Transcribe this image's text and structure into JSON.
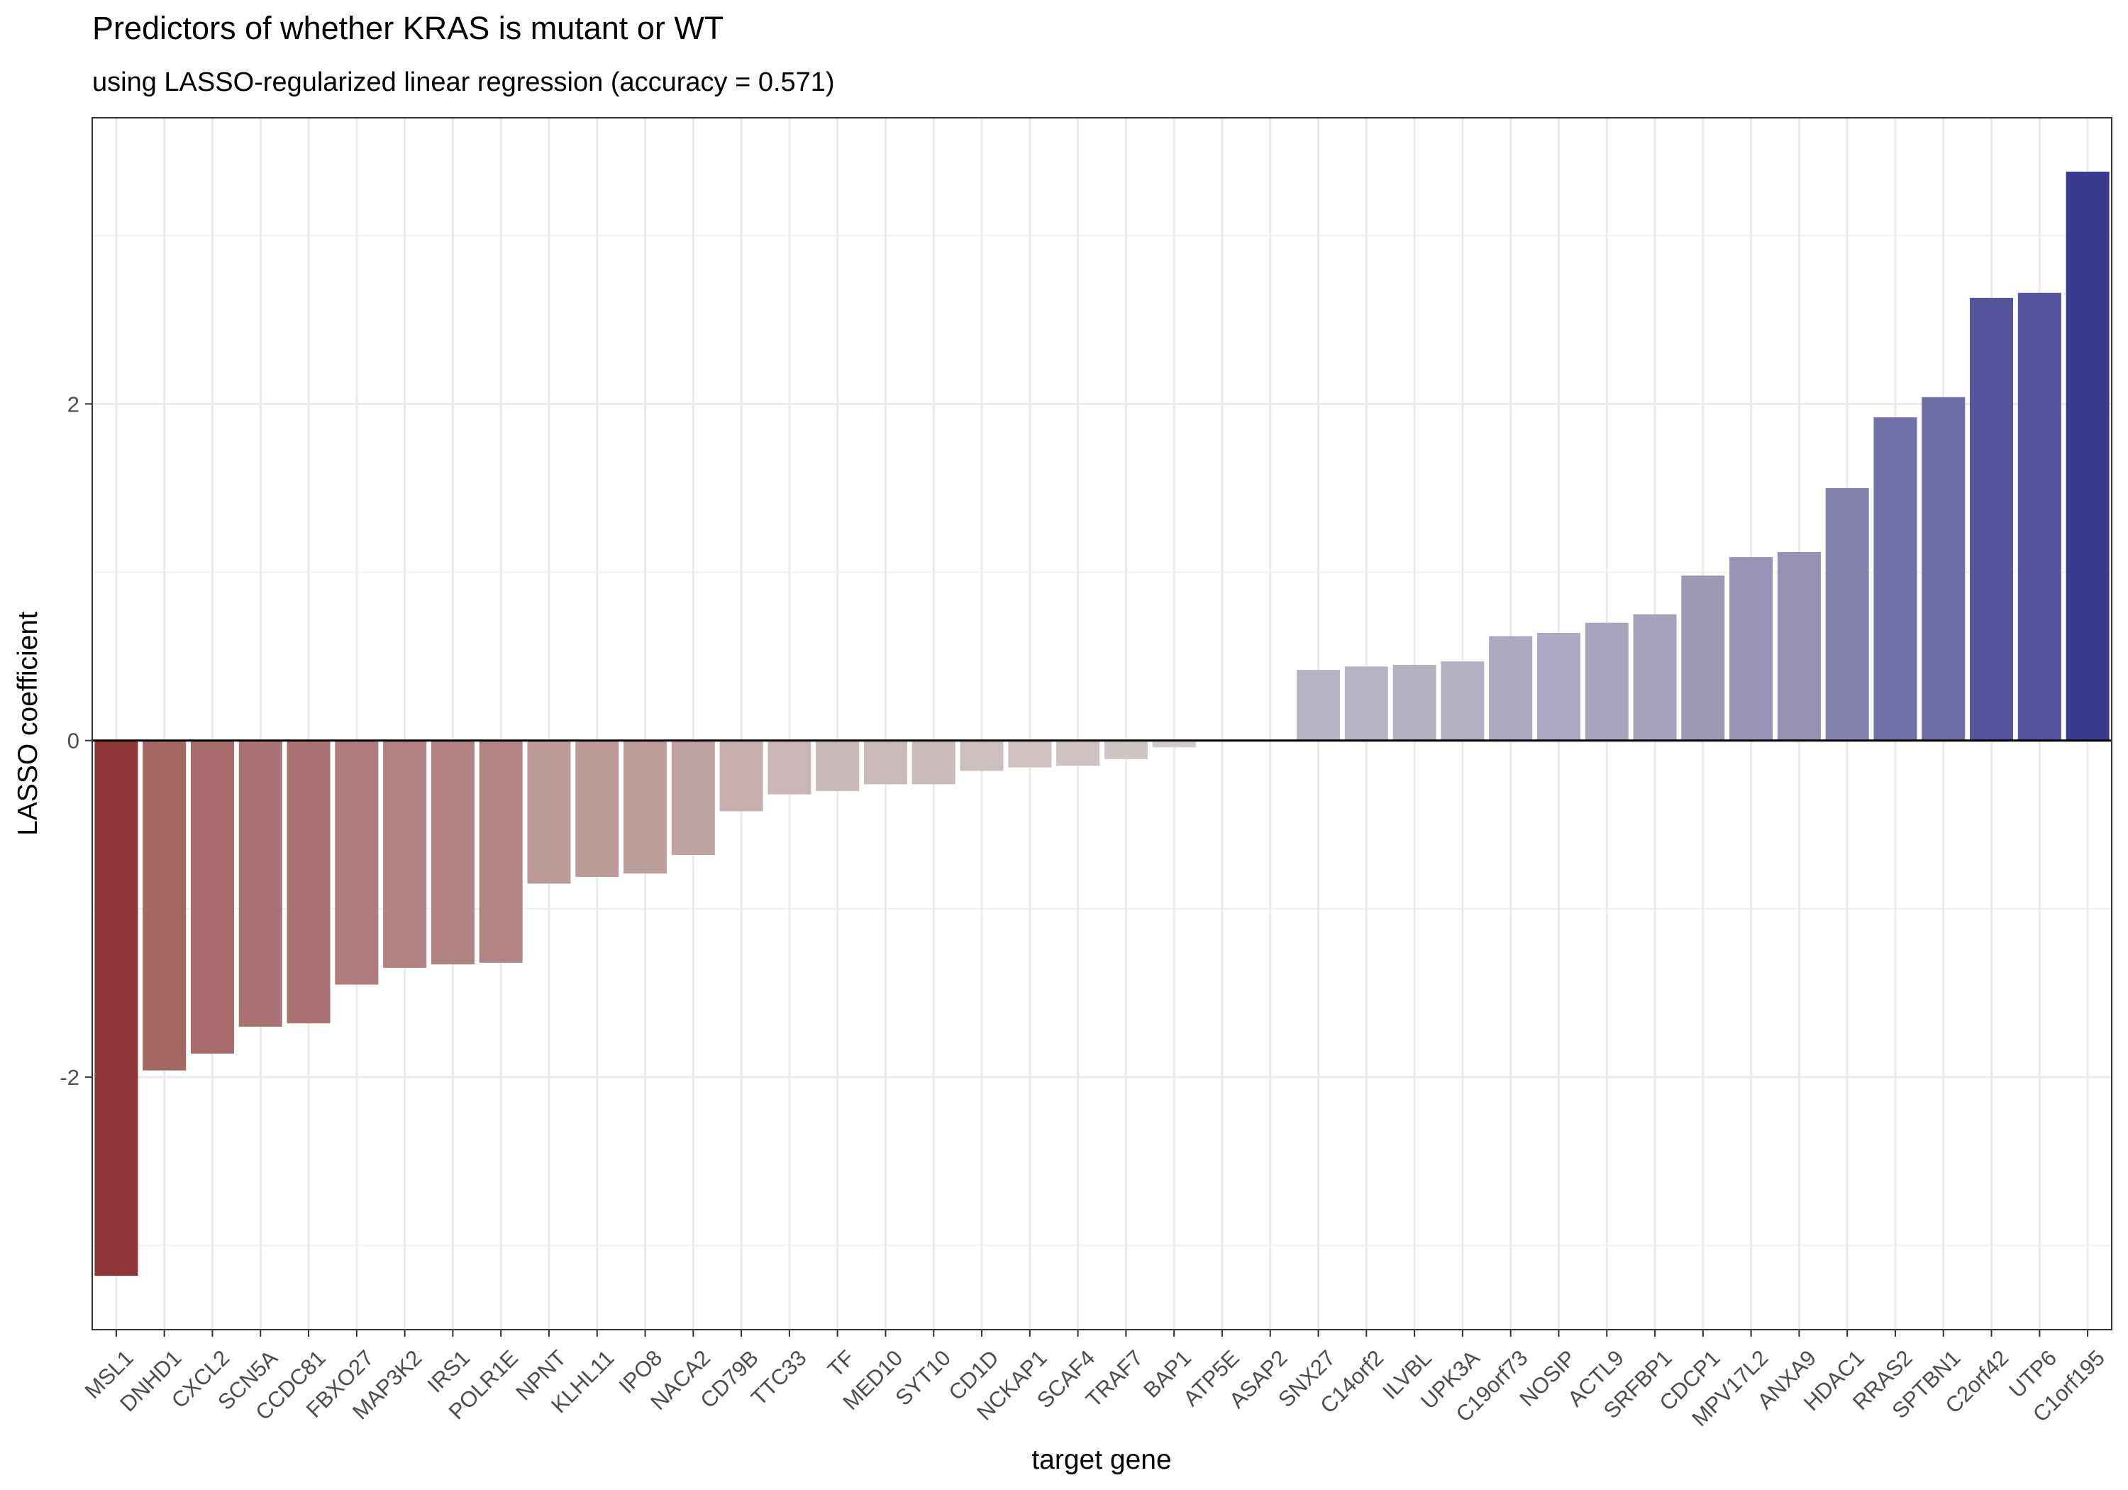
{
  "chart_data": {
    "type": "bar",
    "title": "Predictors of whether KRAS is mutant or WT",
    "subtitle": "using LASSO-regularized linear regression (accuracy = 0.571)",
    "xlabel": "target gene",
    "ylabel": "LASSO coefficient",
    "ylim": [
      -3.5,
      3.7
    ],
    "yticks": [
      -2,
      0,
      2
    ],
    "ytick_labels": [
      "-2",
      "0",
      "2"
    ],
    "grid": true,
    "categories": [
      "MSL1",
      "DNHD1",
      "CXCL2",
      "SCN5A",
      "CCDC81",
      "FBXO27",
      "MAP3K2",
      "IRS1",
      "POLR1E",
      "NPNT",
      "KLHL11",
      "IPO8",
      "NACA2",
      "CD79B",
      "TTC33",
      "TF",
      "MED10",
      "SYT10",
      "CD1D",
      "NCKAP1",
      "SCAF4",
      "TRAF7",
      "BAP1",
      "ATP5E",
      "ASAP2",
      "SNX27",
      "C14orf2",
      "ILVBL",
      "UPK3A",
      "C19orf73",
      "NOSIP",
      "ACTL9",
      "SRFBP1",
      "CDCP1",
      "MPV17L2",
      "ANXA9",
      "HDAC1",
      "RRAS2",
      "SPTBN1",
      "C2orf42",
      "UTP6",
      "C1orf195"
    ],
    "values": [
      -3.18,
      -1.96,
      -1.86,
      -1.7,
      -1.68,
      -1.45,
      -1.35,
      -1.33,
      -1.32,
      -0.85,
      -0.81,
      -0.79,
      -0.68,
      -0.42,
      -0.32,
      -0.3,
      -0.26,
      -0.26,
      -0.18,
      -0.16,
      -0.15,
      -0.11,
      -0.04,
      0.0,
      0.0,
      0.42,
      0.44,
      0.45,
      0.47,
      0.62,
      0.64,
      0.7,
      0.75,
      0.98,
      1.09,
      1.12,
      1.5,
      1.92,
      2.04,
      2.63,
      2.66,
      3.38
    ],
    "colors": {
      "negative_extreme": "#8b2d2d",
      "neutral": "#d4cfcf",
      "positive_extreme": "#3a3a91"
    }
  }
}
